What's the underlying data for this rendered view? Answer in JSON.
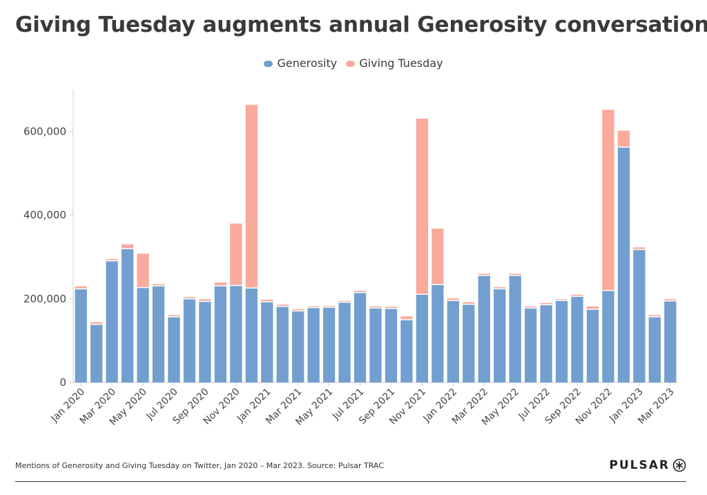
{
  "colors": {
    "generosity": "#729fcf",
    "giving_tuesday": "#f9aa9b",
    "axis": "#cccccc"
  },
  "footer": {
    "caption": "Mentions of Generosity and Giving Tuesday on Twitter, Jan 2020 – Mar 2023. Source: Pulsar TRAC",
    "brand": "PULSAR",
    "brand_icon": "asterisk-circle-icon"
  },
  "chart_data": {
    "type": "bar",
    "stacked": true,
    "title": "Giving Tuesday augments annual Generosity conversation",
    "legend_position": "top",
    "grid": false,
    "ylim": [
      0,
      700000
    ],
    "yticks": [
      0,
      200000,
      400000,
      600000
    ],
    "ytick_labels": [
      "0",
      "200,000",
      "400,000",
      "600,000"
    ],
    "categories": [
      "Jan 2020",
      "Feb 2020",
      "Mar 2020",
      "Apr 2020",
      "May 2020",
      "Jun 2020",
      "Jul 2020",
      "Aug 2020",
      "Sep 2020",
      "Oct 2020",
      "Nov 2020",
      "Dec 2020",
      "Jan 2021",
      "Feb 2021",
      "Mar 2021",
      "Apr 2021",
      "May 2021",
      "Jun 2021",
      "Jul 2021",
      "Aug 2021",
      "Sep 2021",
      "Oct 2021",
      "Nov 2021",
      "Dec 2021",
      "Jan 2022",
      "Feb 2022",
      "Mar 2022",
      "Apr 2022",
      "May 2022",
      "Jun 2022",
      "Jul 2022",
      "Aug 2022",
      "Sep 2022",
      "Oct 2022",
      "Nov 2022",
      "Dec 2022",
      "Jan 2023",
      "Feb 2023",
      "Mar 2023"
    ],
    "xtick_labels": [
      "Jan 2020",
      "Mar 2020",
      "May 2020",
      "Jul 2020",
      "Sep 2020",
      "Nov 2020",
      "Jan 2021",
      "Mar 2021",
      "May 2021",
      "Jul 2021",
      "Sep 2021",
      "Nov 2021",
      "Jan 2022",
      "Mar 2022",
      "May 2022",
      "Jul 2022",
      "Sep 2022",
      "Nov 2022",
      "Jan 2023",
      "Mar 2023"
    ],
    "series": [
      {
        "name": "Generosity",
        "values": [
          224000,
          139000,
          291000,
          320000,
          227000,
          231000,
          157000,
          200000,
          194000,
          231000,
          232000,
          226000,
          193000,
          182000,
          171000,
          179000,
          180000,
          192000,
          215000,
          178000,
          177000,
          150000,
          211000,
          234000,
          196000,
          187000,
          256000,
          224000,
          256000,
          178000,
          186000,
          196000,
          206000,
          175000,
          220000,
          563000,
          318000,
          157000,
          195000
        ]
      },
      {
        "name": "Giving Tuesday",
        "values": [
          6000,
          5000,
          4000,
          10000,
          81000,
          4000,
          4000,
          4000,
          5000,
          8000,
          148000,
          438000,
          5000,
          4000,
          4000,
          3000,
          3000,
          3000,
          4000,
          4000,
          4000,
          8000,
          420000,
          134000,
          5000,
          5000,
          4000,
          4000,
          4000,
          4000,
          4000,
          3000,
          4000,
          7000,
          432000,
          39000,
          5000,
          4000,
          4000
        ]
      }
    ]
  }
}
